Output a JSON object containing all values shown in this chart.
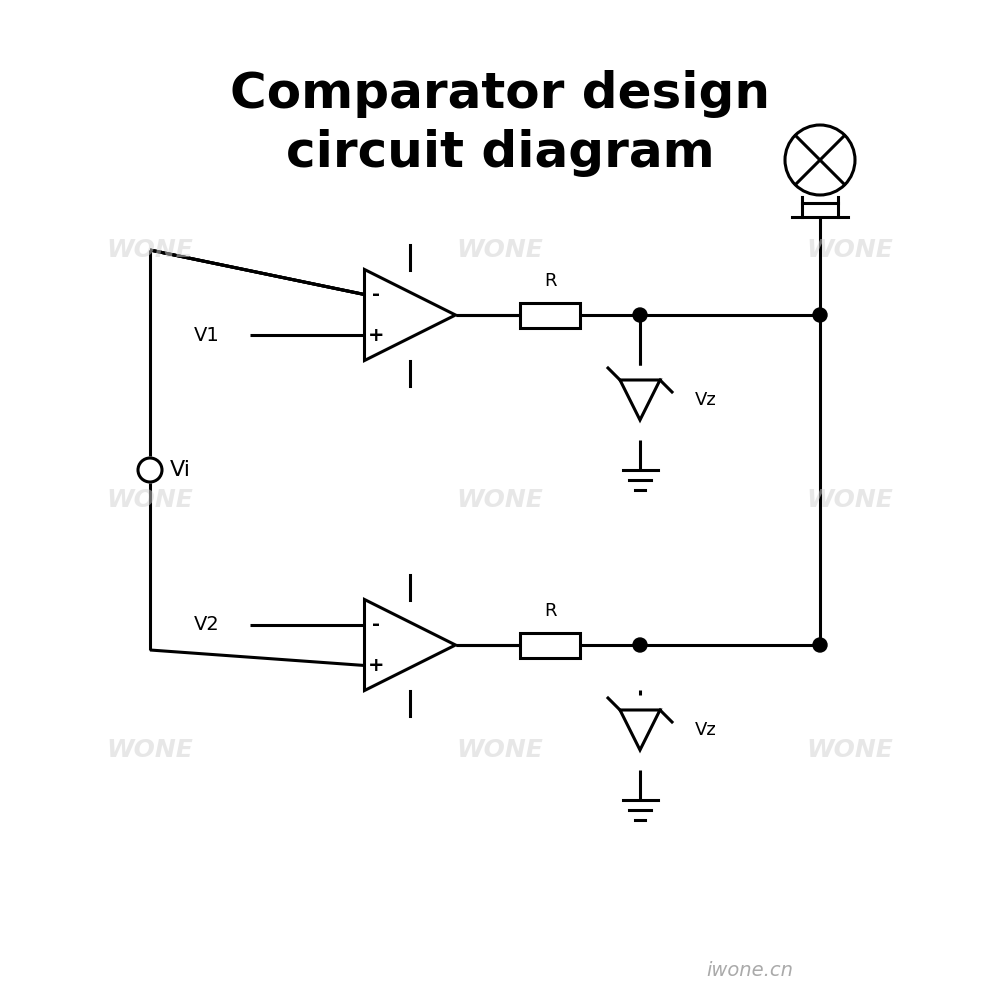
{
  "title": "Comparator design\ncircuit diagram",
  "title_fontsize": 36,
  "bg_color": "#ffffff",
  "line_color": "#000000",
  "line_width": 2.2,
  "watermark": "WONE",
  "watermark_color": "#d0d0d0",
  "credit": "iwone.cn",
  "credit_color": "#aaaaaa"
}
